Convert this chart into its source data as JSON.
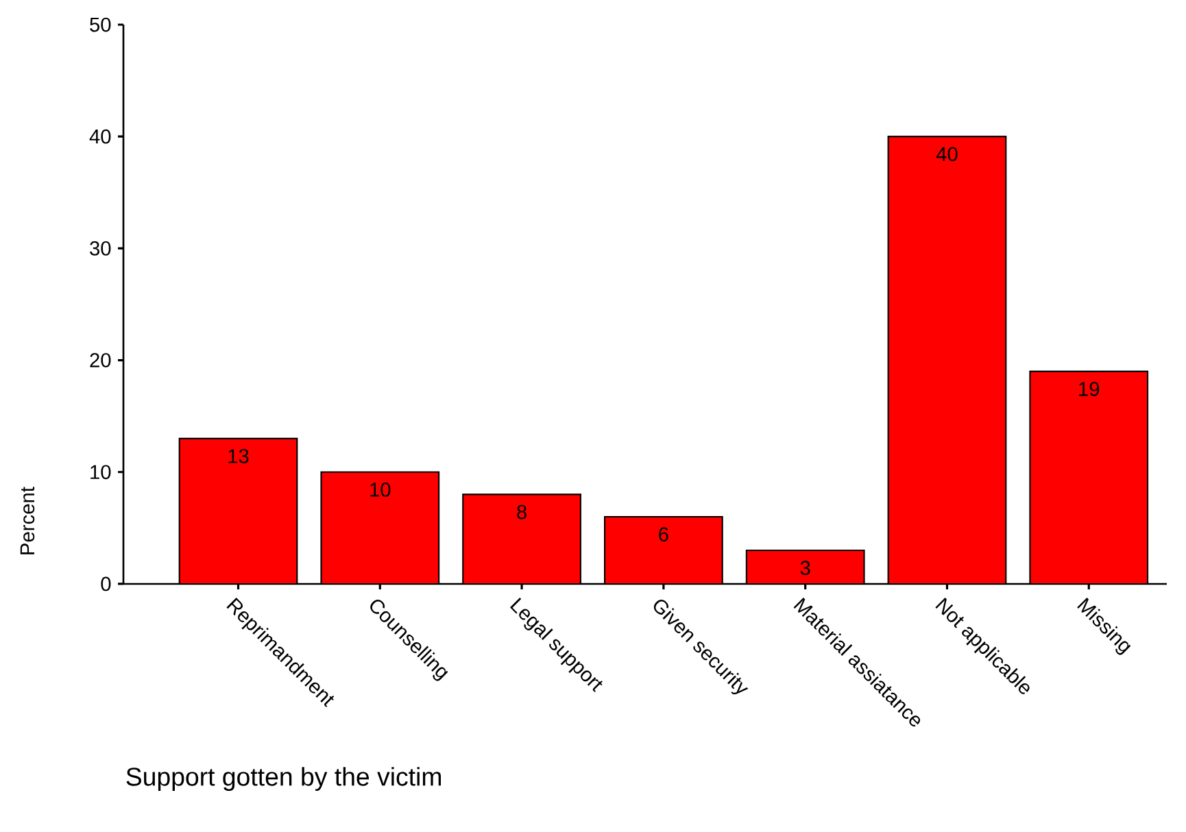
{
  "chart_data": {
    "type": "bar",
    "xlabel": "Support gotten by the victim",
    "ylabel": "Percent",
    "categories": [
      "Reprimandment",
      "Counselling",
      "Legal support",
      "Given security",
      "Material assiatance",
      "Not applicable",
      "Missing"
    ],
    "values": [
      13,
      10,
      8,
      6,
      3,
      40,
      19
    ],
    "color": "#ff0000",
    "ylim": [
      0,
      50
    ],
    "yticks": [
      0,
      10,
      20,
      30,
      40,
      50
    ],
    "data_labels": true
  }
}
